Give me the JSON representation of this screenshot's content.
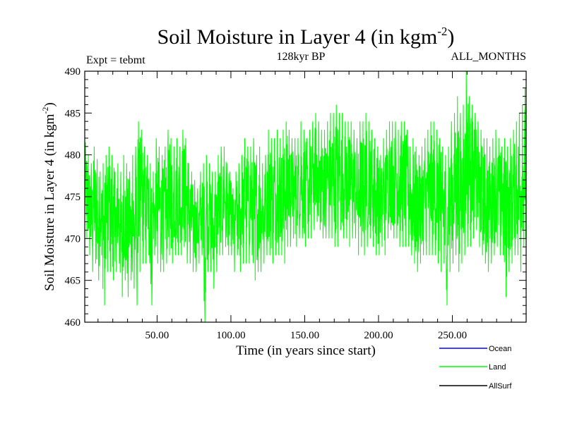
{
  "chart_data": {
    "type": "line",
    "title_main": "Soil Moisture in Layer 4 (in kgm",
    "title_sup": "-2",
    "title_close": ")",
    "subtitle_left": "Expt = tebmt",
    "subtitle_center": "128kyr BP",
    "subtitle_right": "ALL_MONTHS",
    "xlabel": "Time (in years since start)",
    "ylabel_main": "Soil Moisture in Layer 4 (in kgm",
    "ylabel_sup": "-2",
    "ylabel_close": ")",
    "xlim": [
      1,
      300
    ],
    "ylim": [
      460,
      490
    ],
    "xticks": [
      50,
      100,
      150,
      200,
      250
    ],
    "xtick_labels": [
      "50.00",
      "100.00",
      "150.00",
      "200.00",
      "250.00"
    ],
    "yticks": [
      460,
      465,
      470,
      475,
      480,
      485,
      490
    ],
    "ytick_labels": [
      "460",
      "465",
      "470",
      "475",
      "480",
      "485",
      "490"
    ],
    "series": [
      {
        "name": "Land",
        "color": "#00ff00",
        "note": "monthly values, oscillating around ~474 kg m-2",
        "x": [
          1,
          3,
          5,
          7,
          9,
          11,
          13,
          15,
          17,
          19,
          21,
          23,
          25,
          27,
          29,
          31,
          33,
          35,
          37,
          39,
          41,
          43,
          45,
          47,
          49,
          51,
          53,
          55,
          57,
          59,
          61,
          63,
          65,
          67,
          69,
          71,
          73,
          75,
          77,
          79,
          81,
          83,
          85,
          87,
          89,
          91,
          93,
          95,
          97,
          99,
          101,
          103,
          105,
          107,
          109,
          111,
          113,
          115,
          117,
          119,
          121,
          123,
          125,
          127,
          129,
          131,
          133,
          135,
          137,
          139,
          141,
          143,
          145,
          147,
          149,
          151,
          153,
          155,
          157,
          159,
          161,
          163,
          165,
          167,
          169,
          171,
          173,
          175,
          177,
          179,
          181,
          183,
          185,
          187,
          189,
          191,
          193,
          195,
          197,
          199,
          201,
          203,
          205,
          207,
          209,
          211,
          213,
          215,
          217,
          219,
          221,
          223,
          225,
          227,
          229,
          231,
          233,
          235,
          237,
          239,
          241,
          243,
          245,
          247,
          249,
          251,
          253,
          255,
          257,
          259,
          261,
          263,
          265,
          267,
          269,
          271,
          273,
          275,
          277,
          279,
          281,
          283,
          285,
          287,
          289,
          291,
          293,
          295,
          297,
          299
        ],
        "max": [
          481.5,
          480,
          479,
          481,
          479.5,
          478,
          479,
          480,
          481,
          480,
          478,
          479,
          478,
          480,
          479,
          478,
          480,
          481,
          484,
          483,
          481,
          480,
          479,
          478,
          482,
          481,
          480,
          481,
          483,
          482,
          481,
          482,
          481,
          483,
          482,
          479,
          478,
          477,
          476,
          478,
          479,
          480,
          479,
          478,
          478,
          480,
          481,
          481,
          479,
          478,
          476,
          478,
          479,
          480,
          482,
          481,
          481,
          482,
          480,
          481,
          479,
          480,
          483,
          482,
          482,
          483,
          482,
          483,
          484,
          483,
          482,
          482,
          482,
          484,
          483,
          482,
          483,
          484,
          485,
          484,
          483,
          483,
          484,
          485,
          485,
          486,
          485,
          485,
          484,
          484,
          484,
          483,
          482,
          484,
          484,
          485,
          484,
          483,
          482,
          481,
          480,
          482,
          483,
          484,
          484,
          484,
          483,
          484,
          484,
          483,
          481,
          482,
          481,
          480,
          481,
          482,
          483,
          484,
          484,
          483,
          482,
          481,
          480,
          481,
          484,
          485,
          487,
          485,
          486,
          490,
          487,
          486,
          485,
          484,
          483,
          482,
          482,
          481,
          482,
          483,
          482,
          481,
          482,
          481,
          482,
          483,
          484,
          485,
          486,
          488
        ],
        "min": [
          470,
          468,
          466,
          467,
          465,
          468,
          462,
          466,
          466,
          465,
          466,
          467,
          463,
          465,
          463,
          465,
          464,
          462,
          466,
          467,
          467,
          468,
          462,
          468,
          467,
          466,
          466,
          467,
          468,
          467,
          468,
          468,
          468,
          469,
          467,
          467,
          466,
          466,
          467,
          468,
          460,
          466,
          466,
          464,
          466,
          468,
          468,
          469,
          468,
          468,
          466,
          468,
          466,
          467,
          467,
          467,
          468,
          465,
          466,
          466,
          467,
          468,
          468,
          467,
          468,
          468,
          468,
          467,
          469,
          469,
          470,
          469,
          470,
          470,
          469,
          470,
          470,
          471,
          472,
          471,
          470,
          470,
          470,
          470,
          469,
          469,
          471,
          470,
          470,
          469,
          470,
          470,
          468,
          469,
          468,
          469,
          470,
          469,
          468,
          468,
          469,
          468,
          470,
          471,
          470,
          470,
          469,
          469,
          469,
          469,
          468,
          467,
          466,
          467,
          468,
          468,
          468,
          468,
          468,
          467,
          466,
          467,
          462,
          466,
          467,
          468,
          466,
          467,
          468,
          469,
          469,
          470,
          471,
          469,
          468,
          467,
          466,
          467,
          468,
          469,
          468,
          468,
          463,
          466,
          467,
          468,
          468,
          466,
          469,
          470
        ]
      },
      {
        "name": "Ocean",
        "color": "#0000ff"
      },
      {
        "name": "AllSurf",
        "color": "#000000"
      }
    ],
    "legend": [
      {
        "label": "Ocean",
        "color": "#0000ff"
      },
      {
        "label": "Land",
        "color": "#00ff00"
      },
      {
        "label": "AllSurf",
        "color": "#000000"
      }
    ],
    "legend_position": "bottom-right"
  }
}
